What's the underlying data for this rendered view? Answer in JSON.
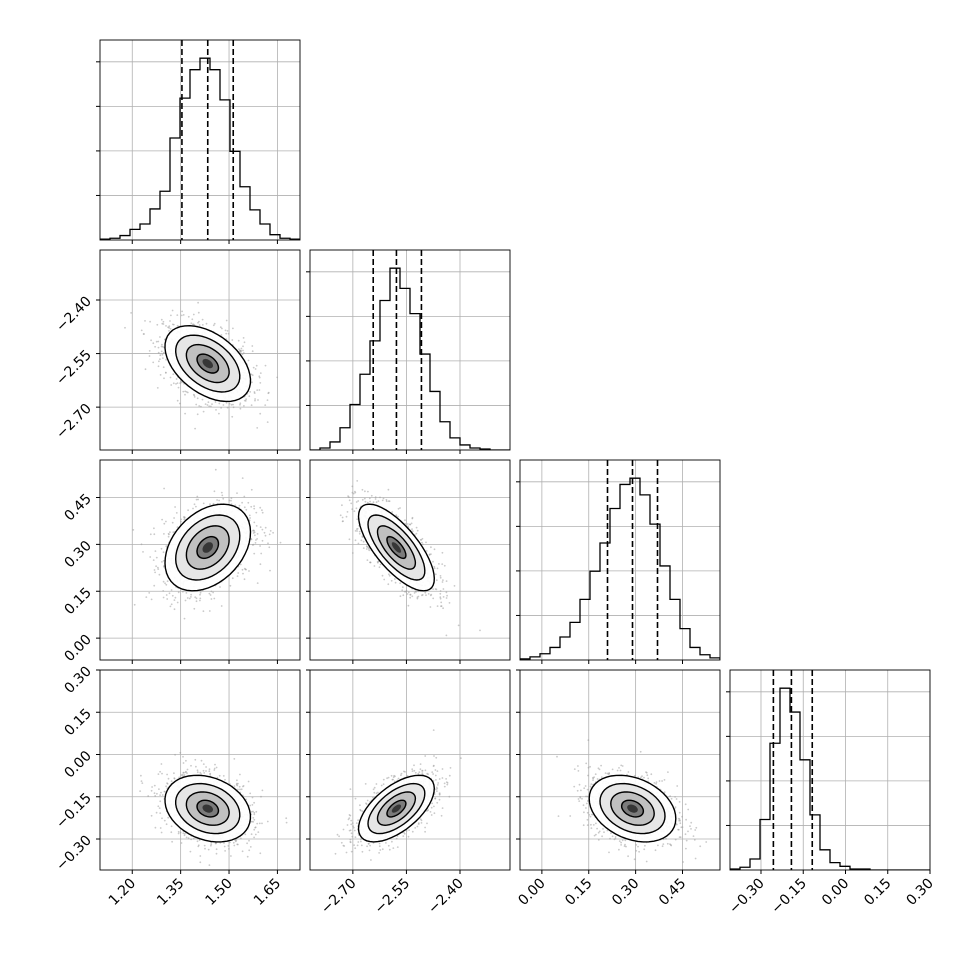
{
  "chart_data": {
    "type": "corner",
    "grid": true,
    "parameters": [
      {
        "ticks": [
          1.2,
          1.35,
          1.5,
          1.65
        ],
        "tick_labels": [
          "1.20",
          "1.35",
          "1.50",
          "1.65"
        ],
        "range": [
          1.1,
          1.72
        ]
      },
      {
        "ticks": [
          -2.7,
          -2.55,
          -2.4
        ],
        "tick_labels": [
          "−2.70",
          "−2.55",
          "−2.40"
        ],
        "range": [
          -2.82,
          -2.26
        ]
      },
      {
        "ticks": [
          0.0,
          0.15,
          0.3,
          0.45
        ],
        "tick_labels": [
          "0.00",
          "0.15",
          "0.30",
          "0.45"
        ],
        "range": [
          -0.07,
          0.57
        ]
      },
      {
        "ticks": [
          -0.3,
          -0.15,
          0.0,
          0.15,
          0.3
        ],
        "tick_labels": [
          "−0.30",
          "−0.15",
          "0.00",
          "0.15",
          "0.30"
        ],
        "range": [
          -0.41,
          0.3
        ]
      }
    ],
    "marginals": [
      {
        "quantiles": [
          1.354,
          1.434,
          1.513
        ],
        "edges": [
          1.1,
          1.131,
          1.162,
          1.193,
          1.224,
          1.255,
          1.286,
          1.317,
          1.348,
          1.379,
          1.41,
          1.441,
          1.472,
          1.503,
          1.534,
          1.565,
          1.596,
          1.627,
          1.658,
          1.689,
          1.72
        ],
        "counts": [
          1,
          2,
          5,
          12,
          18,
          35,
          55,
          115,
          160,
          192,
          205,
          192,
          158,
          100,
          60,
          34,
          18,
          6,
          2,
          1
        ]
      },
      {
        "quantiles": [
          -2.643,
          -2.578,
          -2.508
        ],
        "edges": [
          -2.82,
          -2.792,
          -2.764,
          -2.736,
          -2.708,
          -2.68,
          -2.652,
          -2.624,
          -2.596,
          -2.568,
          -2.54,
          -2.512,
          -2.484,
          -2.456,
          -2.428,
          -2.4,
          -2.372,
          -2.344,
          -2.316,
          -2.288,
          -2.26
        ],
        "counts": [
          0,
          2,
          8,
          22,
          45,
          75,
          108,
          148,
          180,
          160,
          135,
          95,
          58,
          28,
          12,
          5,
          2,
          1,
          0,
          0
        ]
      },
      {
        "quantiles": [
          0.21,
          0.29,
          0.37
        ],
        "edges": [
          -0.07,
          -0.038,
          -0.006,
          0.026,
          0.058,
          0.09,
          0.122,
          0.154,
          0.186,
          0.218,
          0.25,
          0.282,
          0.314,
          0.346,
          0.378,
          0.41,
          0.442,
          0.474,
          0.506,
          0.538,
          0.57
        ],
        "counts": [
          1,
          3,
          6,
          12,
          22,
          36,
          58,
          85,
          112,
          145,
          168,
          174,
          158,
          130,
          90,
          58,
          30,
          12,
          5,
          2
        ]
      },
      {
        "quantiles": [
          -0.256,
          -0.192,
          -0.118
        ],
        "edges": [
          -0.41,
          -0.3745,
          -0.339,
          -0.3035,
          -0.268,
          -0.2325,
          -0.197,
          -0.1615,
          -0.126,
          -0.0905,
          -0.055,
          -0.0195,
          0.016,
          0.0515,
          0.087,
          0.1225,
          0.158,
          0.1935,
          0.229,
          0.2645,
          0.3
        ],
        "counts": [
          1,
          3,
          12,
          55,
          138,
          198,
          172,
          120,
          60,
          22,
          8,
          4,
          1,
          1,
          0,
          0,
          0,
          0,
          0,
          0
        ]
      }
    ],
    "pairs": [
      {
        "row": 1,
        "col": 0,
        "mean": [
          1.434,
          -2.578
        ],
        "sd": [
          0.065,
          0.052
        ],
        "rho": -0.45
      },
      {
        "row": 2,
        "col": 0,
        "mean": [
          1.434,
          0.29
        ],
        "sd": [
          0.065,
          0.068
        ],
        "rho": 0.35
      },
      {
        "row": 2,
        "col": 1,
        "mean": [
          -2.578,
          0.29
        ],
        "sd": [
          0.052,
          0.068
        ],
        "rho": -0.72
      },
      {
        "row": 3,
        "col": 0,
        "mean": [
          1.434,
          -0.192
        ],
        "sd": [
          0.065,
          0.058
        ],
        "rho": -0.25
      },
      {
        "row": 3,
        "col": 1,
        "mean": [
          -2.578,
          -0.192
        ],
        "sd": [
          0.052,
          0.058
        ],
        "rho": 0.6
      },
      {
        "row": 3,
        "col": 2,
        "mean": [
          0.29,
          -0.192
        ],
        "sd": [
          0.068,
          0.058
        ],
        "rho": -0.3
      }
    ],
    "contour_levels_sigma": [
      0.5,
      1.0,
      1.5,
      2.0
    ],
    "colors": {
      "hist": "#000000",
      "scatter": "#9e9e9e",
      "grid": "#b0b0b0",
      "density_dark": "#000000"
    }
  }
}
